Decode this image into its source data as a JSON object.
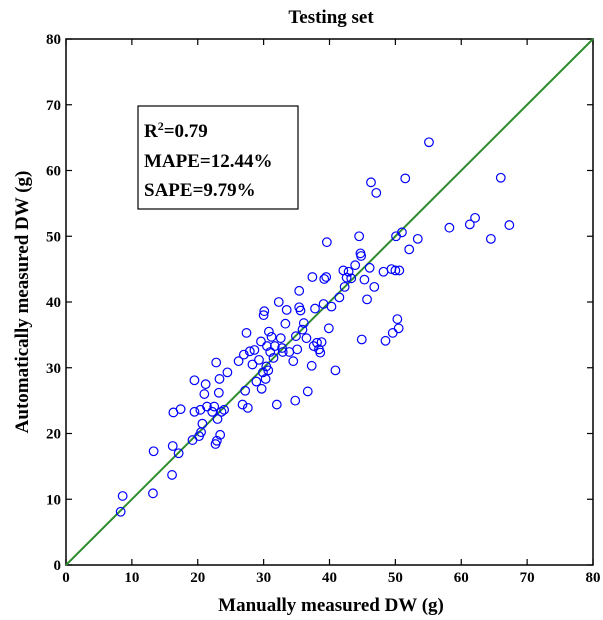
{
  "chart_data": {
    "type": "scatter",
    "title": "Testing set",
    "xlabel": "Manually measured DW (g)",
    "ylabel": "Automatically measured DW (g)",
    "xlim": [
      0,
      80
    ],
    "ylim": [
      0,
      80
    ],
    "xticks": [
      "0",
      "10",
      "20",
      "30",
      "40",
      "50",
      "60",
      "70",
      "80"
    ],
    "yticks": [
      "0",
      "10",
      "20",
      "30",
      "40",
      "50",
      "60",
      "70",
      "80"
    ],
    "grid": false,
    "colors": {
      "points": "#0000ff",
      "fit_line": "#2e8b2e",
      "axes": "#000000"
    },
    "fit_line": {
      "x": [
        0,
        80
      ],
      "y": [
        0,
        80
      ]
    },
    "stats": {
      "r2": "=0.79",
      "mape": "MAPE=12.44%",
      "sape": "SAPE=9.79%"
    },
    "points": [
      [
        8.3,
        8.1
      ],
      [
        8.6,
        10.5
      ],
      [
        13.2,
        10.9
      ],
      [
        13.3,
        17.3
      ],
      [
        16.1,
        13.7
      ],
      [
        16.2,
        18.1
      ],
      [
        16.3,
        23.2
      ],
      [
        17.1,
        17.0
      ],
      [
        17.4,
        23.7
      ],
      [
        19.2,
        19.0
      ],
      [
        19.5,
        23.3
      ],
      [
        19.5,
        28.1
      ],
      [
        20.2,
        19.6
      ],
      [
        20.4,
        23.6
      ],
      [
        20.5,
        20.2
      ],
      [
        20.7,
        21.5
      ],
      [
        21.0,
        26.0
      ],
      [
        21.2,
        27.5
      ],
      [
        21.4,
        24.1
      ],
      [
        22.2,
        23.3
      ],
      [
        22.5,
        24.1
      ],
      [
        22.7,
        18.4
      ],
      [
        22.8,
        30.8
      ],
      [
        22.9,
        18.9
      ],
      [
        23.0,
        22.2
      ],
      [
        23.2,
        26.2
      ],
      [
        23.3,
        28.3
      ],
      [
        23.4,
        19.8
      ],
      [
        23.6,
        23.3
      ],
      [
        24.0,
        23.6
      ],
      [
        24.5,
        29.3
      ],
      [
        26.2,
        31.0
      ],
      [
        26.8,
        24.4
      ],
      [
        27.0,
        32.0
      ],
      [
        27.2,
        26.5
      ],
      [
        27.4,
        35.3
      ],
      [
        27.6,
        23.9
      ],
      [
        27.9,
        32.5
      ],
      [
        28.3,
        30.5
      ],
      [
        28.6,
        32.7
      ],
      [
        28.9,
        27.9
      ],
      [
        29.3,
        31.2
      ],
      [
        29.6,
        34.0
      ],
      [
        29.7,
        26.8
      ],
      [
        29.9,
        29.3
      ],
      [
        30.0,
        38.0
      ],
      [
        30.1,
        38.6
      ],
      [
        30.3,
        28.3
      ],
      [
        30.4,
        30.2
      ],
      [
        30.5,
        33.3
      ],
      [
        30.7,
        29.6
      ],
      [
        30.8,
        35.5
      ],
      [
        31.0,
        32.4
      ],
      [
        31.2,
        34.7
      ],
      [
        31.5,
        31.5
      ],
      [
        31.7,
        33.3
      ],
      [
        32.0,
        24.4
      ],
      [
        32.3,
        40.0
      ],
      [
        32.6,
        34.5
      ],
      [
        32.8,
        33.0
      ],
      [
        32.9,
        32.4
      ],
      [
        33.3,
        36.7
      ],
      [
        33.5,
        38.8
      ],
      [
        33.9,
        32.4
      ],
      [
        34.5,
        31.0
      ],
      [
        34.8,
        25.0
      ],
      [
        34.9,
        34.8
      ],
      [
        35.1,
        32.8
      ],
      [
        35.4,
        39.2
      ],
      [
        35.4,
        41.7
      ],
      [
        35.6,
        38.7
      ],
      [
        35.9,
        35.8
      ],
      [
        36.1,
        36.8
      ],
      [
        36.5,
        34.5
      ],
      [
        36.7,
        26.4
      ],
      [
        37.3,
        30.3
      ],
      [
        37.4,
        43.8
      ],
      [
        37.6,
        33.3
      ],
      [
        37.8,
        39.0
      ],
      [
        38.1,
        33.8
      ],
      [
        38.4,
        32.8
      ],
      [
        38.6,
        32.3
      ],
      [
        38.8,
        33.9
      ],
      [
        39.1,
        39.7
      ],
      [
        39.2,
        43.5
      ],
      [
        39.5,
        43.8
      ],
      [
        39.6,
        49.1
      ],
      [
        39.9,
        36.0
      ],
      [
        40.3,
        39.3
      ],
      [
        40.9,
        29.6
      ],
      [
        41.5,
        40.7
      ],
      [
        42.1,
        44.8
      ],
      [
        42.3,
        42.3
      ],
      [
        42.6,
        43.7
      ],
      [
        42.9,
        44.6
      ],
      [
        43.3,
        43.6
      ],
      [
        43.9,
        45.6
      ],
      [
        44.5,
        50.0
      ],
      [
        44.7,
        47.4
      ],
      [
        44.8,
        47.0
      ],
      [
        44.9,
        34.3
      ],
      [
        45.3,
        43.4
      ],
      [
        45.7,
        40.4
      ],
      [
        46.1,
        45.2
      ],
      [
        46.3,
        58.2
      ],
      [
        46.8,
        42.3
      ],
      [
        47.1,
        56.6
      ],
      [
        48.2,
        44.6
      ],
      [
        48.5,
        34.1
      ],
      [
        49.4,
        45.0
      ],
      [
        49.6,
        35.3
      ],
      [
        50.0,
        44.8
      ],
      [
        50.1,
        50.0
      ],
      [
        50.3,
        37.4
      ],
      [
        50.5,
        36.0
      ],
      [
        50.6,
        44.8
      ],
      [
        51.0,
        50.6
      ],
      [
        51.5,
        58.8
      ],
      [
        52.1,
        48.0
      ],
      [
        53.4,
        49.6
      ],
      [
        55.1,
        64.3
      ],
      [
        58.2,
        51.3
      ],
      [
        61.3,
        51.8
      ],
      [
        62.1,
        52.8
      ],
      [
        64.5,
        49.6
      ],
      [
        66.0,
        58.9
      ],
      [
        67.3,
        51.7
      ]
    ]
  }
}
